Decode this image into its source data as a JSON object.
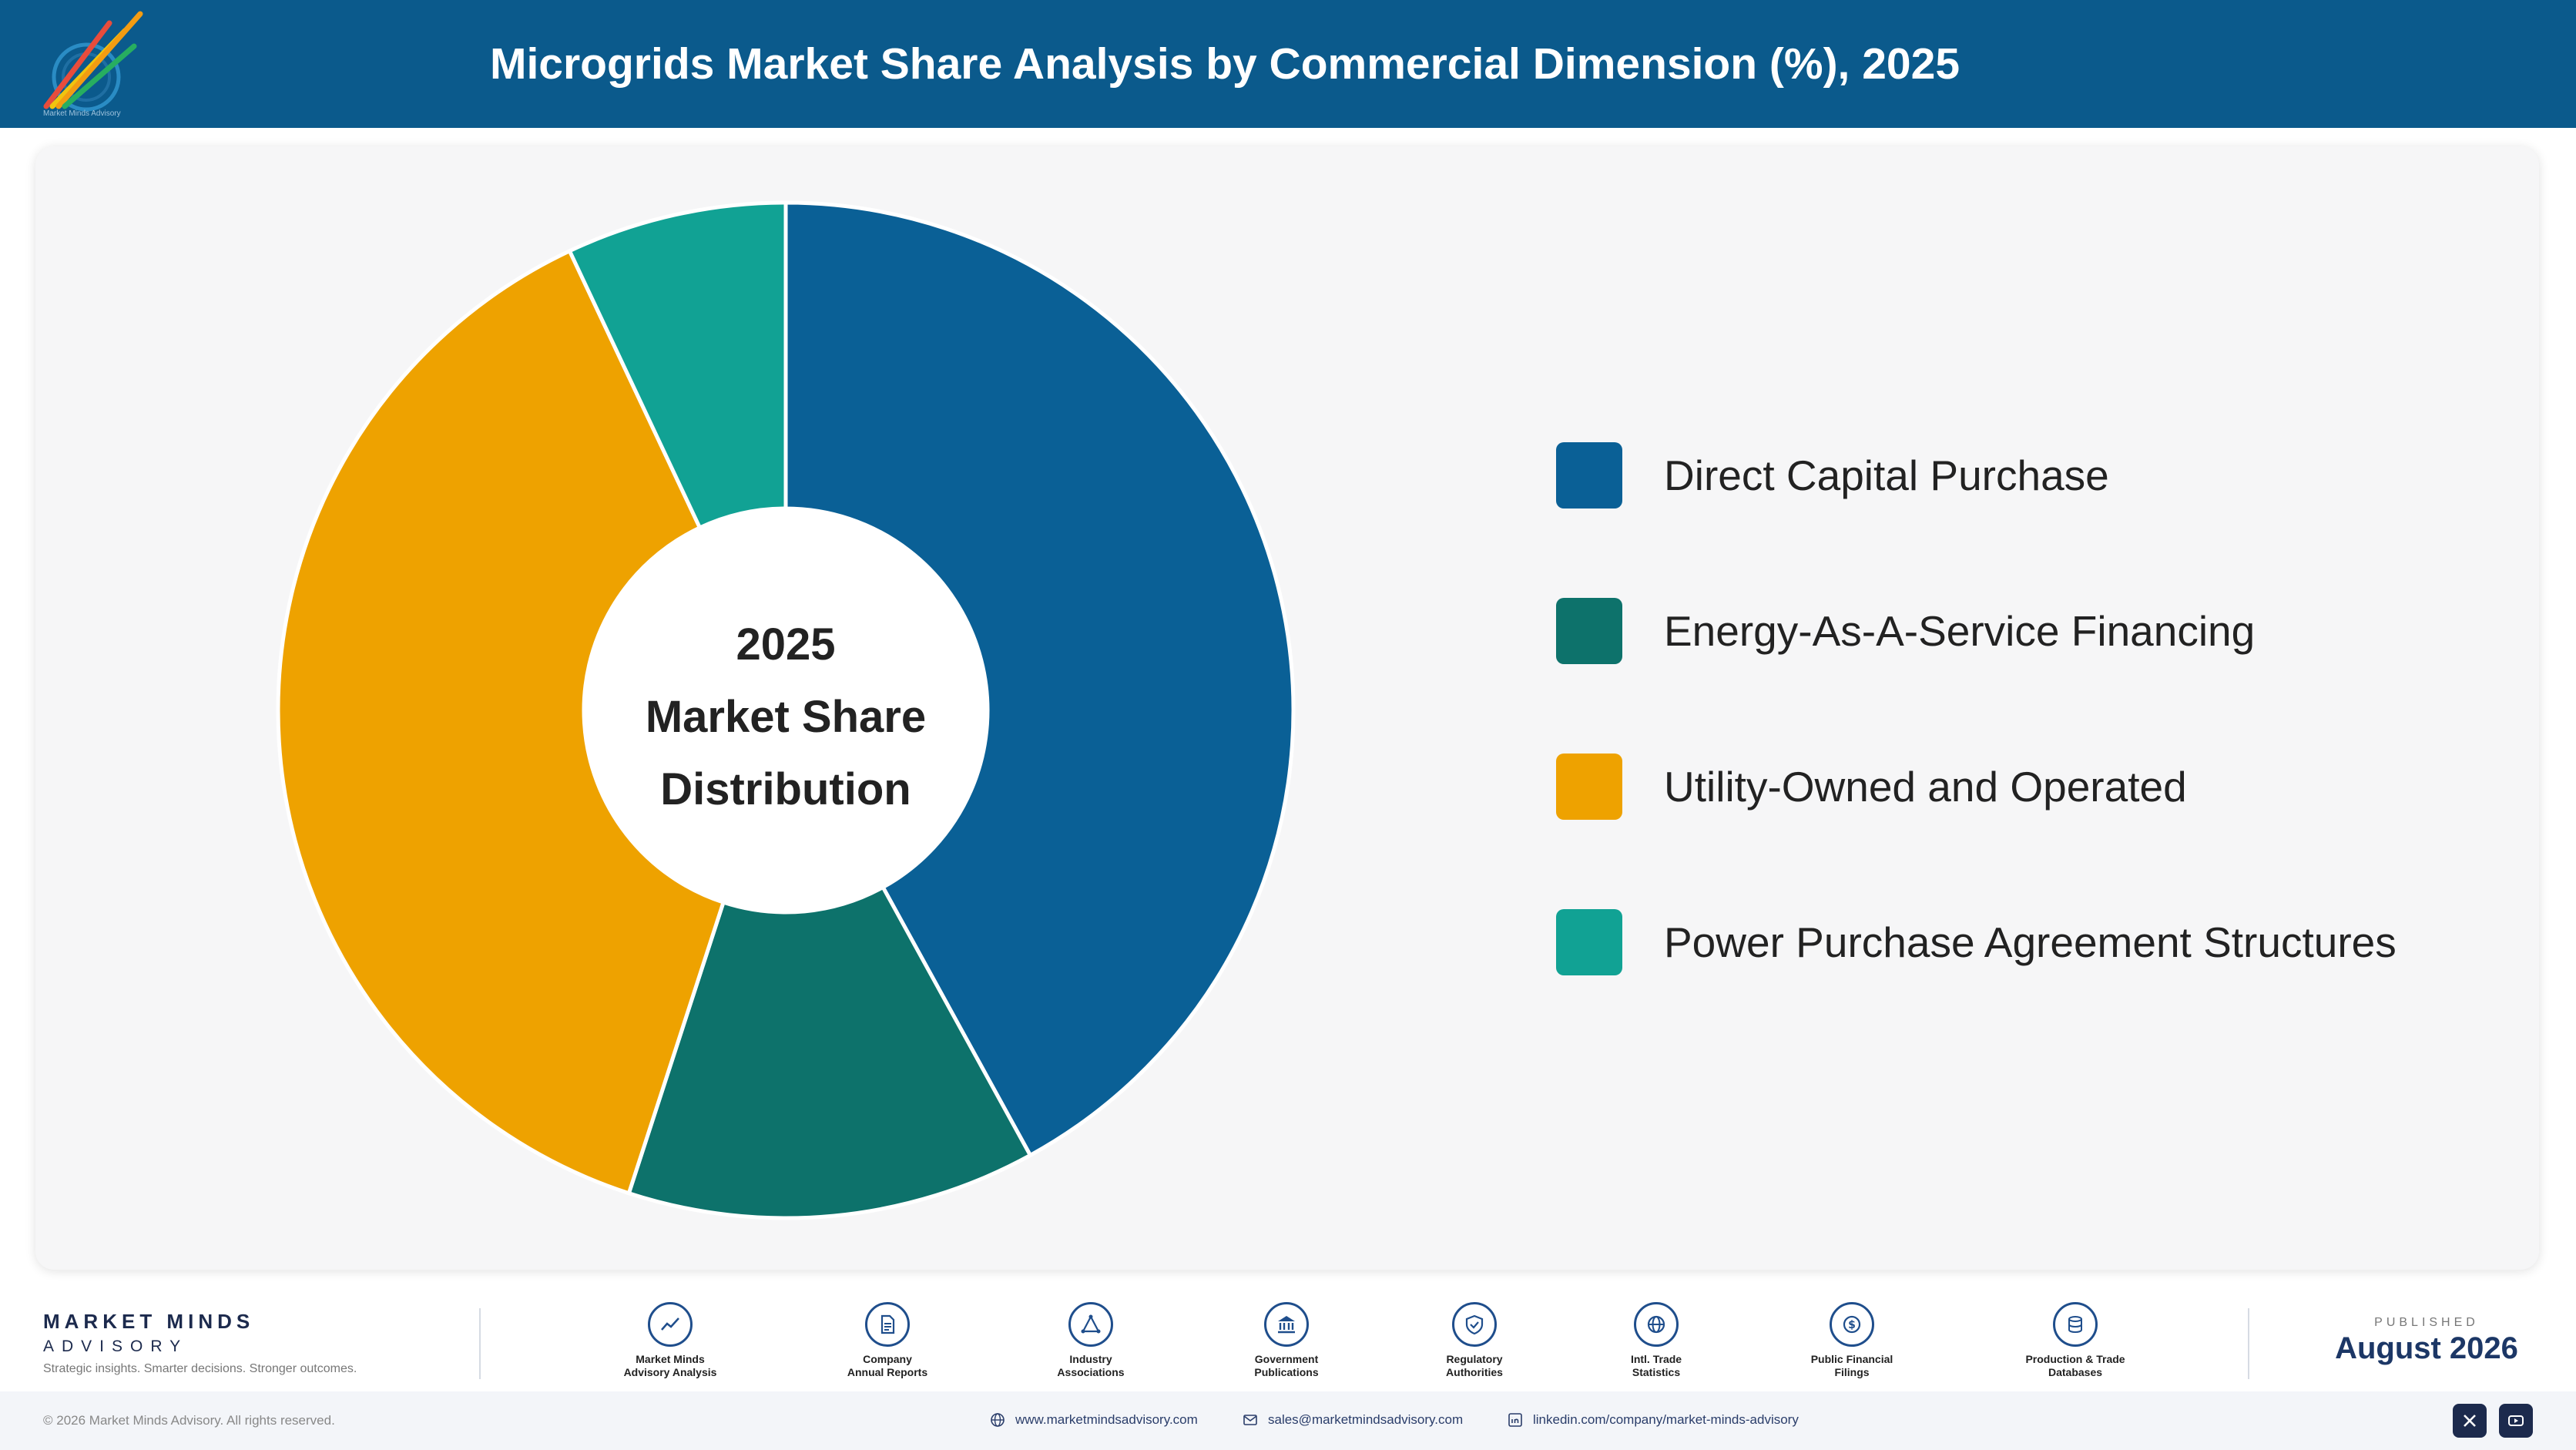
{
  "header": {
    "title": "Microgrids Market Share Analysis by Commercial Dimension (%), 2025",
    "logo_caption": "Market Minds Advisory",
    "bg_color": "#0b5a8c"
  },
  "chart_data": {
    "type": "pie",
    "title": "Microgrids Market Share Analysis by Commercial Dimension (%), 2025",
    "center_label": [
      "2025",
      "Market Share",
      "Distribution"
    ],
    "donut": true,
    "legend_position": "right",
    "series": [
      {
        "name": "Direct Capital Purchase",
        "value": 42,
        "color": "#0a6096"
      },
      {
        "name": "Energy-As-A-Service Financing",
        "value": 13,
        "color": "#0d726b"
      },
      {
        "name": "Utility-Owned and Operated",
        "value": 38,
        "color": "#eea200"
      },
      {
        "name": "Power Purchase Agreement Structures",
        "value": 7,
        "color": "#11a294"
      }
    ]
  },
  "footer": {
    "brand_name": "MARKET MINDS",
    "brand_sub": "ADVISORY",
    "brand_tagline": "Strategic insights. Smarter decisions. Stronger outcomes.",
    "sources": [
      {
        "line1": "Market Minds",
        "line2": "Advisory Analysis",
        "icon": "trend-chart-icon"
      },
      {
        "line1": "Company",
        "line2": "Annual Reports",
        "icon": "document-icon"
      },
      {
        "line1": "Industry",
        "line2": "Associations",
        "icon": "network-icon"
      },
      {
        "line1": "Government",
        "line2": "Publications",
        "icon": "government-building-icon"
      },
      {
        "line1": "Regulatory",
        "line2": "Authorities",
        "icon": "shield-check-icon"
      },
      {
        "line1": "Intl. Trade",
        "line2": "Statistics",
        "icon": "globe-icon"
      },
      {
        "line1": "Public Financial",
        "line2": "Filings",
        "icon": "dollar-coin-icon"
      },
      {
        "line1": "Production & Trade",
        "line2": "Databases",
        "icon": "database-icon"
      }
    ],
    "published_label": "PUBLISHED",
    "published_date": "August 2026",
    "copyright": "© 2026 Market Minds Advisory. All rights reserved.",
    "website": "www.marketmindsadvisory.com",
    "email": "sales@marketmindsadvisory.com",
    "linkedin": "linkedin.com/company/market-minds-advisory"
  }
}
